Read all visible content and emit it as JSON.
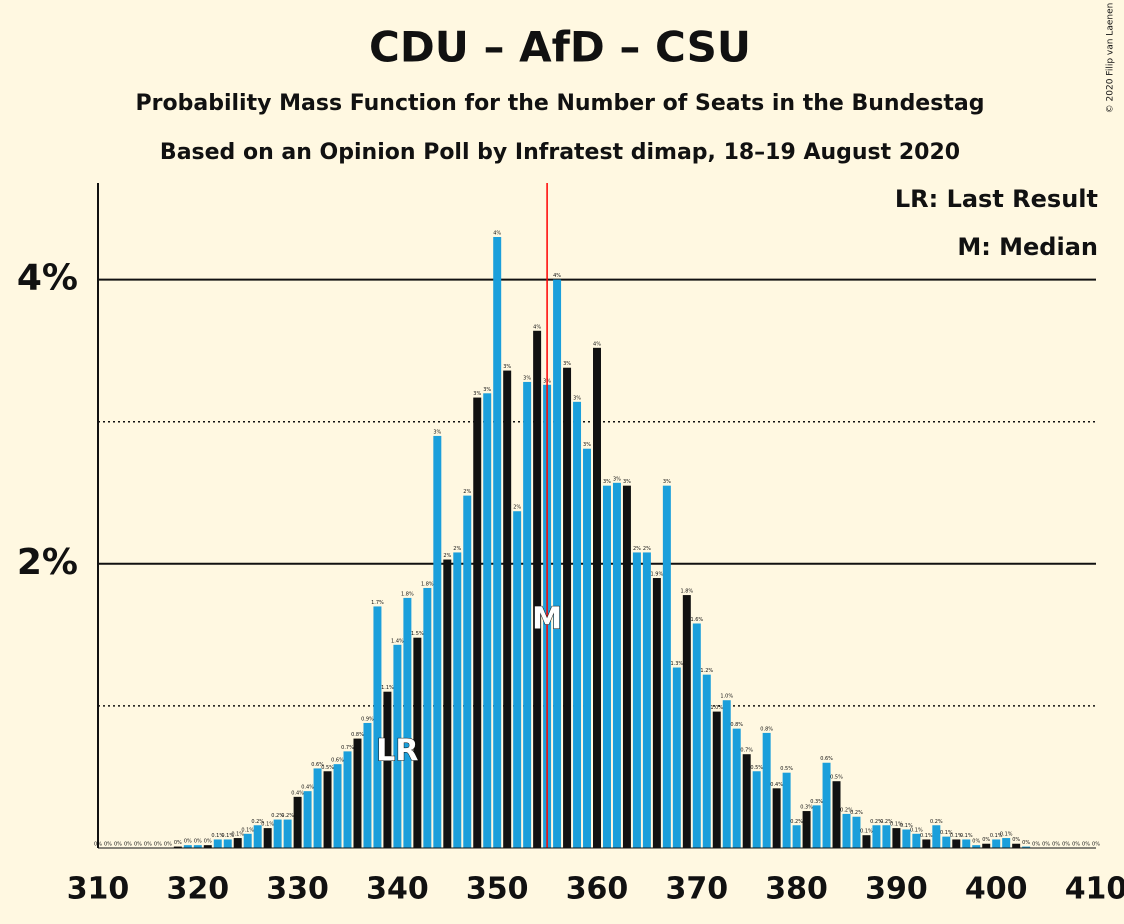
{
  "chart_data": {
    "type": "bar",
    "title": "CDU – AfD – CSU",
    "subtitle": "Probability Mass Function for the Number of Seats in the Bundestag",
    "subtitle2": "Based on an Opinion Poll by Infratest dimap, 18–19 August 2020",
    "copyright": "© 2020 Filip van Laenen",
    "legend": [
      "LR: Last Result",
      "M: Median"
    ],
    "x": [
      310,
      311,
      312,
      313,
      314,
      315,
      316,
      317,
      318,
      319,
      320,
      321,
      322,
      323,
      324,
      325,
      326,
      327,
      328,
      329,
      330,
      331,
      332,
      333,
      334,
      335,
      336,
      337,
      338,
      339,
      340,
      341,
      342,
      343,
      344,
      345,
      346,
      347,
      348,
      349,
      350,
      351,
      352,
      353,
      354,
      355,
      356,
      357,
      358,
      359,
      360,
      361,
      362,
      363,
      364,
      365,
      366,
      367,
      368,
      369,
      370,
      371,
      372,
      373,
      374,
      375,
      376,
      377,
      378,
      379,
      380,
      381,
      382,
      383,
      384,
      385,
      386,
      387,
      388,
      389,
      390,
      391,
      392,
      393,
      394,
      395,
      396,
      397,
      398,
      399,
      400,
      401,
      402,
      403,
      404,
      405,
      406,
      407,
      408,
      409,
      410
    ],
    "values": [
      0,
      0,
      0,
      0,
      0,
      0,
      0,
      0,
      0.01,
      0.02,
      0.02,
      0.02,
      0.06,
      0.06,
      0.07,
      0.1,
      0.16,
      0.14,
      0.2,
      0.2,
      0.36,
      0.4,
      0.56,
      0.54,
      0.59,
      0.68,
      0.77,
      0.88,
      1.7,
      1.1,
      1.43,
      1.76,
      1.48,
      1.83,
      2.9,
      2.03,
      2.08,
      2.48,
      3.17,
      3.2,
      4.3,
      3.36,
      2.37,
      3.28,
      3.64,
      3.26,
      4.0,
      3.38,
      3.14,
      2.81,
      3.52,
      2.55,
      2.57,
      2.55,
      2.08,
      2.08,
      1.9,
      2.55,
      1.27,
      1.78,
      1.58,
      1.22,
      0.96,
      1.04,
      0.84,
      0.66,
      0.54,
      0.81,
      0.42,
      0.53,
      0.16,
      0.26,
      0.3,
      0.6,
      0.47,
      0.24,
      0.22,
      0.09,
      0.16,
      0.16,
      0.14,
      0.13,
      0.1,
      0.06,
      0.16,
      0.08,
      0.06,
      0.06,
      0.02,
      0.03,
      0.06,
      0.07,
      0.03,
      0.01,
      0,
      0,
      0,
      0,
      0,
      0,
      0
    ],
    "value_labels": [
      "0%",
      "0%",
      "0%",
      "0%",
      "0%",
      "0%",
      "0%",
      "0%",
      "0%",
      "0%",
      "0%",
      "0%",
      "0.1%",
      "0.1%",
      "0.1%",
      "0.1%",
      "0.2%",
      "0.1%",
      "0.2%",
      "0.2%",
      "0.4%",
      "0.4%",
      "0.6%",
      "0.5%",
      "0.6%",
      "0.7%",
      "0.8%",
      "0.9%",
      "1.7%",
      "1.1%",
      "1.4%",
      "1.8%",
      "1.5%",
      "1.8%",
      "3%",
      "2%",
      "2%",
      "2%",
      "3%",
      "3%",
      "4%",
      "3%",
      "2%",
      "3%",
      "4%",
      "3%",
      "4%",
      "3%",
      "3%",
      "3%",
      "4%",
      "3%",
      "3%",
      "3%",
      "2%",
      "2%",
      "1.9%",
      "3%",
      "1.3%",
      "1.8%",
      "1.6%",
      "1.2%",
      "1.0%",
      "1.0%",
      "0.8%",
      "0.7%",
      "0.5%",
      "0.8%",
      "0.4%",
      "0.5%",
      "0.2%",
      "0.3%",
      "0.3%",
      "0.6%",
      "0.5%",
      "0.2%",
      "0.2%",
      "0.1%",
      "0.2%",
      "0.2%",
      "0.1%",
      "0.1%",
      "0.1%",
      "0.1%",
      "0.2%",
      "0.1%",
      "0.1%",
      "0.1%",
      "0%",
      "0%",
      "0.1%",
      "0.1%",
      "0%",
      "0%",
      "0%",
      "0%",
      "0%",
      "0%",
      "0%",
      "0%",
      "0%"
    ],
    "colors": [
      "#1b9fdb",
      "#1b9fdb",
      "#111111",
      "#1b9fdb",
      "#1b9fdb",
      "#111111",
      "#1b9fdb",
      "#1b9fdb",
      "#111111",
      "#1b9fdb",
      "#1b9fdb",
      "#111111",
      "#1b9fdb",
      "#1b9fdb",
      "#111111",
      "#1b9fdb",
      "#1b9fdb",
      "#111111",
      "#1b9fdb",
      "#1b9fdb",
      "#111111",
      "#1b9fdb",
      "#1b9fdb",
      "#111111",
      "#1b9fdb",
      "#1b9fdb",
      "#111111",
      "#1b9fdb",
      "#1b9fdb",
      "#111111",
      "#1b9fdb",
      "#1b9fdb",
      "#111111",
      "#1b9fdb",
      "#1b9fdb",
      "#111111",
      "#1b9fdb",
      "#1b9fdb",
      "#111111",
      "#1b9fdb",
      "#1b9fdb",
      "#111111",
      "#1b9fdb",
      "#1b9fdb",
      "#111111",
      "#1b9fdb",
      "#1b9fdb",
      "#111111",
      "#1b9fdb",
      "#1b9fdb",
      "#111111",
      "#1b9fdb",
      "#1b9fdb",
      "#111111",
      "#1b9fdb",
      "#1b9fdb",
      "#111111",
      "#1b9fdb",
      "#1b9fdb",
      "#111111",
      "#1b9fdb",
      "#1b9fdb",
      "#111111",
      "#1b9fdb",
      "#1b9fdb",
      "#111111",
      "#1b9fdb",
      "#1b9fdb",
      "#111111",
      "#1b9fdb",
      "#1b9fdb",
      "#111111",
      "#1b9fdb",
      "#1b9fdb",
      "#111111",
      "#1b9fdb",
      "#1b9fdb",
      "#111111",
      "#1b9fdb",
      "#1b9fdb",
      "#111111",
      "#1b9fdb",
      "#1b9fdb",
      "#111111",
      "#1b9fdb",
      "#1b9fdb",
      "#111111",
      "#1b9fdb",
      "#1b9fdb",
      "#111111",
      "#1b9fdb",
      "#1b9fdb",
      "#111111",
      "#1b9fdb",
      "#1b9fdb",
      "#111111",
      "#1b9fdb",
      "#1b9fdb",
      "#111111",
      "#1b9fdb",
      "#1b9fdb"
    ],
    "annotations": [
      {
        "x": 340,
        "label": "LR"
      },
      {
        "x": 355,
        "label": "M"
      }
    ],
    "median_line": {
      "x": 355,
      "color": "#ff0000"
    },
    "xlim": [
      310,
      410
    ],
    "xticks": [
      310,
      320,
      330,
      340,
      350,
      360,
      370,
      380,
      390,
      400,
      410
    ],
    "ylim": [
      0,
      4.68
    ],
    "yticks": [
      {
        "value": 2,
        "label": "2%"
      },
      {
        "value": 4,
        "label": "4%"
      }
    ],
    "minor_yticks": [
      1,
      3
    ],
    "grid": true
  }
}
